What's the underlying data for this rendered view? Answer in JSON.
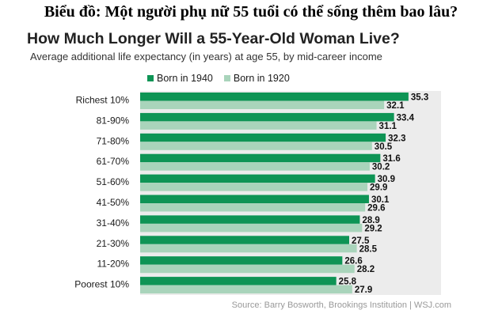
{
  "caption": "Biểu đồ: Một người phụ nữ 55 tuổi có thể sống thêm bao lâu?",
  "chart_data": {
    "type": "bar",
    "orientation": "horizontal",
    "title": "How Much Longer Will a 55-Year-Old Woman Live?",
    "subtitle": "Average additional life expectancy (in years) at age 55, by mid-career income",
    "categories": [
      "Richest 10%",
      "81-90%",
      "71-80%",
      "61-70%",
      "51-60%",
      "41-50%",
      "31-40%",
      "21-30%",
      "11-20%",
      "Poorest 10%"
    ],
    "series": [
      {
        "name": "Born in 1940",
        "color": "#0e9455",
        "values": [
          35.3,
          33.4,
          32.3,
          31.6,
          30.9,
          30.1,
          28.9,
          27.5,
          26.6,
          25.8
        ]
      },
      {
        "name": "Born in 1920",
        "color": "#a9d4bb",
        "values": [
          32.1,
          31.1,
          30.5,
          30.2,
          29.9,
          29.6,
          29.2,
          28.5,
          28.2,
          27.9
        ]
      }
    ],
    "legend_position": "top",
    "grid": false
  },
  "source": "Source: Barry Bosworth, Brookings Institution  |  WSJ.com"
}
